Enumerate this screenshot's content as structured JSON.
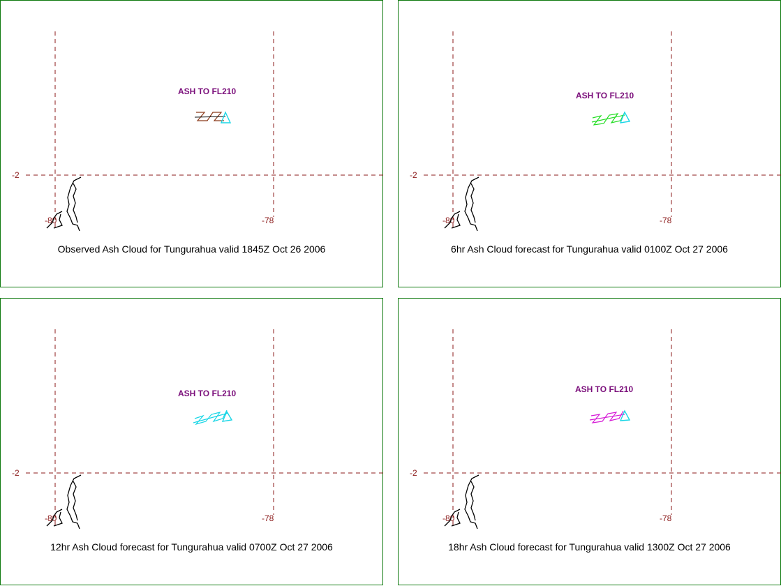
{
  "panels": [
    {
      "caption": "Observed Ash Cloud for Tungurahua valid 1845Z Oct 26 2006",
      "ash_label": "ASH TO FL210",
      "lat_label": "-2",
      "lon_labels": [
        "-80",
        "-78"
      ],
      "cloud_color": "#8b3a1a"
    },
    {
      "caption": "6hr Ash Cloud forecast for Tungurahua valid 0100Z Oct 27 2006",
      "ash_label": "ASH TO FL210",
      "lat_label": "-2",
      "lon_labels": [
        "-80",
        "-78"
      ],
      "cloud_color": "#22dd22"
    },
    {
      "caption": "12hr Ash Cloud forecast for Tungurahua valid 0700Z Oct 27 2006",
      "ash_label": "ASH TO FL210",
      "lat_label": "-2",
      "lon_labels": [
        "-80",
        "-78"
      ],
      "cloud_color": "#1ad6e6"
    },
    {
      "caption": "18hr Ash Cloud forecast for Tungurahua valid 1300Z Oct 27 2006",
      "ash_label": "ASH TO FL210",
      "lat_label": "-2",
      "lon_labels": [
        "-80",
        "-78"
      ],
      "cloud_color": "#d61ad6"
    }
  ],
  "colors": {
    "border": "#0f7a0f",
    "grid": "#8b1a1a",
    "ash_label": "#7b0f7b",
    "volcano_marker": "#1ad6e6",
    "coastline": "#000000"
  },
  "icons": {
    "volcano": "volcano-triangle-icon"
  }
}
